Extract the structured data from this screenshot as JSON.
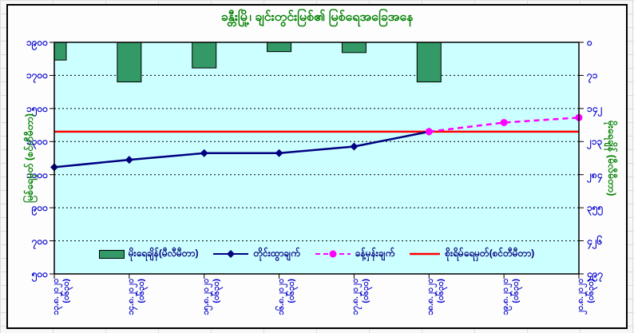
{
  "title": "ခန္တီးမြို့၊ ချင်းတွင်းမြစ်၏ မြစ်ရေအခြေအနေ",
  "colors": {
    "title": "#008000",
    "plot_background": "#ccffff",
    "bar_fill": "#339966",
    "measured_line": "#000080",
    "forecast_line": "#ff00ff",
    "danger_line": "#ff0000",
    "tick_label": "#0000cc",
    "legend_text": "#000080"
  },
  "legend": {
    "items": [
      {
        "id": "rainfall",
        "label": "မိုးရေချိန်(မီလီမီတာ)"
      },
      {
        "id": "measured",
        "label": "တိုင်းထွာချက်"
      },
      {
        "id": "forecast",
        "label": "ခန့်မှန်းချက်"
      },
      {
        "id": "danger",
        "label": "စိုးရိမ်ရေမှတ်(စင်တီမီတာ)"
      }
    ]
  },
  "chart_data": {
    "type": "combo",
    "title": "ခန္တီးမြို့၊ ချင်းတွင်းမြစ်၏ မြစ်ရေအခြေအနေ",
    "categories": [
      "13.8.2020",
      "14.8.2020",
      "15.8.2020",
      "16.8.2020",
      "17.8.2020",
      "18.8.2020",
      "19.8.2020",
      "20.8.2020"
    ],
    "x_axis": {
      "tick_labels_burmese": [
        "၁၃.၈.၂၀၂၀",
        "၁၄.၈.၂၀၂၀",
        "၁၅.၈.၂၀၂၀",
        "၁၆.၈.၂၀၂၀",
        "၁၇.၈.၂၀၂၀",
        "၁၈.၈.၂၀၂၀",
        "၁၉.၈.၂၀၂၀",
        "၂၀.၈.၂၀၂၀"
      ],
      "tick_sublabel_burmese": "(၀၆၃၀)",
      "tick_sublabel": "(0630)",
      "labels_rotated_degrees": -90
    },
    "left_axis": {
      "title": "မြစ်ရေမှတ် (စင်တီမီတာ)",
      "min": 500,
      "max": 1900,
      "step": 200,
      "max_at_top": true,
      "ticks": [
        1900,
        1700,
        1500,
        1300,
        1100,
        900,
        700,
        500
      ],
      "ticks_burmese": [
        "၁၉၀၀",
        "၁၇၀၀",
        "၁၅၀၀",
        "၁၃၀၀",
        "၁၁၀၀",
        "၉၀၀",
        "၇၀၀",
        "၅၀၀"
      ]
    },
    "right_axis": {
      "title": "မိုးရေချိန် (မီလီမီတာ)",
      "min": 0,
      "max": 497,
      "step": 71,
      "max_at_top": false,
      "ticks": [
        0,
        71,
        142,
        213,
        284,
        355,
        426,
        497
      ],
      "ticks_burmese": [
        "၀",
        "၇၁",
        "၁၄၂",
        "၂၁၃",
        "၂၈၄",
        "၃၅၅",
        "၄၂၆",
        "၄၉၇"
      ]
    },
    "grid": {
      "horizontal_dashed": true
    },
    "legend_position": "inside-bottom",
    "series": [
      {
        "id": "rainfall",
        "name": "မိုးရေချိန်(မီလီမီတာ)",
        "type": "bar",
        "axis": "right",
        "color": "#339966",
        "hangs_from_top": true,
        "values": [
          38,
          85,
          55,
          20,
          22,
          85,
          null,
          null
        ]
      },
      {
        "id": "measured",
        "name": "တိုင်းထွာချက်",
        "type": "line",
        "axis": "left",
        "color": "#000080",
        "marker": "diamond",
        "dashed": false,
        "values": [
          1145,
          1190,
          1230,
          1230,
          1270,
          1360,
          null,
          null
        ]
      },
      {
        "id": "forecast",
        "name": "ခန့်မှန်းချက်",
        "type": "line",
        "axis": "left",
        "color": "#ff00ff",
        "marker": "circle",
        "dashed": true,
        "values": [
          null,
          null,
          null,
          null,
          null,
          1360,
          1415,
          1445
        ]
      },
      {
        "id": "danger",
        "name": "စိုးရိမ်ရေမှတ်(စင်တီမီတာ)",
        "type": "hline",
        "axis": "left",
        "color": "#ff0000",
        "value": 1360
      }
    ]
  }
}
